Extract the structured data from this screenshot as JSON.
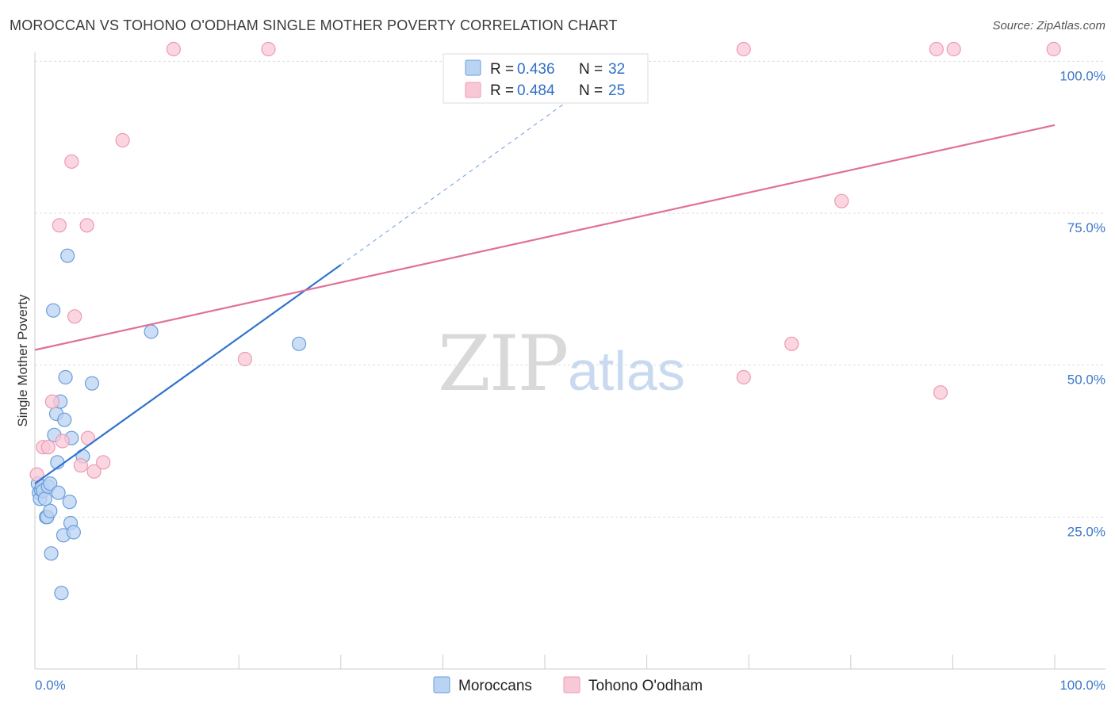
{
  "title": "MOROCCAN VS TOHONO O'ODHAM SINGLE MOTHER POVERTY CORRELATION CHART",
  "source": "Source: ZipAtlas.com",
  "watermark": {
    "zip": "ZIP",
    "atlas": "atlas"
  },
  "colors": {
    "blue_fill": "#b9d3f3",
    "blue_stroke": "#6a9ed8",
    "blue_line": "#2f72d0",
    "pink_fill": "#f9c8d6",
    "pink_stroke": "#ec9ab3",
    "pink_line": "#e0709a",
    "tick": "#3c78c8",
    "grid": "#dddddd"
  },
  "legend": {
    "rows": [
      {
        "r_label": "R =",
        "r_value": "0.436",
        "n_label": "N =",
        "n_value": "32"
      },
      {
        "r_label": "R =",
        "r_value": "0.484",
        "n_label": "N =",
        "n_value": "25"
      }
    ]
  },
  "chart_data": {
    "type": "scatter",
    "title": "MOROCCAN VS TOHONO O'ODHAM SINGLE MOTHER POVERTY CORRELATION CHART",
    "xlabel": "",
    "ylabel": "Single Mother Poverty",
    "xlim": [
      0,
      100
    ],
    "ylim": [
      0,
      102
    ],
    "x_tick_labels": {
      "left": "0.0%",
      "right": "100.0%"
    },
    "y_ticks": [
      {
        "value": 25,
        "label": "25.0%"
      },
      {
        "value": 50,
        "label": "50.0%"
      },
      {
        "value": 75,
        "label": "75.0%"
      },
      {
        "value": 100,
        "label": "100.0%"
      }
    ],
    "grid": true,
    "legend_position": "top-center",
    "series": [
      {
        "name": "Moroccans",
        "color": "#6a9ed8",
        "r": 0.436,
        "n": 32,
        "trend": {
          "x0": 0,
          "y0": 30.5,
          "x1": 30,
          "y1": 66.5,
          "dash_x1": 56,
          "dash_y1": 98
        },
        "points": [
          [
            0.3,
            30.5
          ],
          [
            0.4,
            29
          ],
          [
            0.5,
            28
          ],
          [
            0.6,
            29.5
          ],
          [
            0.7,
            30
          ],
          [
            0.8,
            29.3
          ],
          [
            1.0,
            28
          ],
          [
            1.1,
            25
          ],
          [
            1.2,
            25
          ],
          [
            1.3,
            30
          ],
          [
            1.5,
            30.5
          ],
          [
            1.5,
            26
          ],
          [
            1.6,
            19
          ],
          [
            1.8,
            59
          ],
          [
            1.9,
            38.5
          ],
          [
            2.1,
            42
          ],
          [
            2.2,
            34
          ],
          [
            2.3,
            29
          ],
          [
            2.5,
            44
          ],
          [
            2.6,
            12.5
          ],
          [
            2.8,
            22
          ],
          [
            2.9,
            41
          ],
          [
            3.0,
            48
          ],
          [
            3.2,
            68
          ],
          [
            3.4,
            27.5
          ],
          [
            3.5,
            24
          ],
          [
            3.6,
            38
          ],
          [
            3.8,
            22.5
          ],
          [
            4.7,
            35
          ],
          [
            5.6,
            47
          ],
          [
            11.4,
            55.5
          ],
          [
            25.9,
            53.5
          ]
        ]
      },
      {
        "name": "Tohono O'odham",
        "color": "#ec9ab3",
        "r": 0.484,
        "n": 25,
        "trend": {
          "x0": 0,
          "y0": 52.5,
          "x1": 100,
          "y1": 89.5
        },
        "points": [
          [
            0.2,
            32
          ],
          [
            0.8,
            36.5
          ],
          [
            1.3,
            36.5
          ],
          [
            1.7,
            44
          ],
          [
            2.4,
            73
          ],
          [
            2.7,
            37.5
          ],
          [
            3.6,
            83.5
          ],
          [
            3.9,
            58
          ],
          [
            4.5,
            33.5
          ],
          [
            5.1,
            73
          ],
          [
            5.2,
            38
          ],
          [
            5.8,
            32.5
          ],
          [
            6.7,
            34
          ],
          [
            8.6,
            87
          ],
          [
            13.6,
            102
          ],
          [
            22.9,
            102
          ],
          [
            20.6,
            51
          ],
          [
            69.5,
            48
          ],
          [
            69.5,
            102
          ],
          [
            74.2,
            53.5
          ],
          [
            79.1,
            77
          ],
          [
            88.4,
            102
          ],
          [
            88.8,
            45.5
          ],
          [
            90.1,
            102
          ],
          [
            99.9,
            102
          ]
        ]
      }
    ]
  }
}
